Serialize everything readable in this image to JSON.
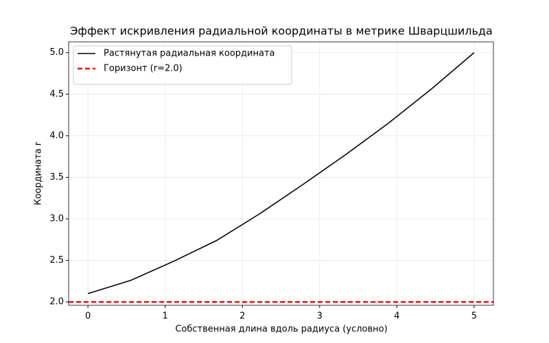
{
  "chart_data": {
    "type": "line",
    "title": "Эффект искривления радиальной координаты в метрике Шварцшильда",
    "xlabel": "Собственная длина вдоль радиуса (условно)",
    "ylabel": "Координата r",
    "x": [
      0,
      0.556,
      1.111,
      1.667,
      2.222,
      2.778,
      3.333,
      3.889,
      4.444,
      5
    ],
    "series": [
      {
        "name": "Растянутая радиальная координата",
        "color": "#000000",
        "values": [
          2.1,
          2.26,
          2.49,
          2.74,
          3.06,
          3.41,
          3.77,
          4.15,
          4.56,
          5.0
        ]
      }
    ],
    "hlines": [
      {
        "name": "Горизонт (r=2.0)",
        "color": "#ff0000",
        "value": 2.0,
        "dashed": true
      }
    ],
    "xlim": [
      -0.25,
      5.25
    ],
    "ylim": [
      1.96,
      5.13
    ],
    "xticks": [
      0,
      1,
      2,
      3,
      4,
      5
    ],
    "yticks": [
      {
        "value": 2,
        "label": "2.0"
      },
      {
        "value": 2.5,
        "label": "2.5"
      },
      {
        "value": 3,
        "label": "3.0"
      },
      {
        "value": 3.5,
        "label": "3.5"
      },
      {
        "value": 4,
        "label": "4.0"
      },
      {
        "value": 4.5,
        "label": "4.5"
      },
      {
        "value": 5,
        "label": "5.0"
      }
    ],
    "grid": true,
    "legend": "upper left"
  }
}
